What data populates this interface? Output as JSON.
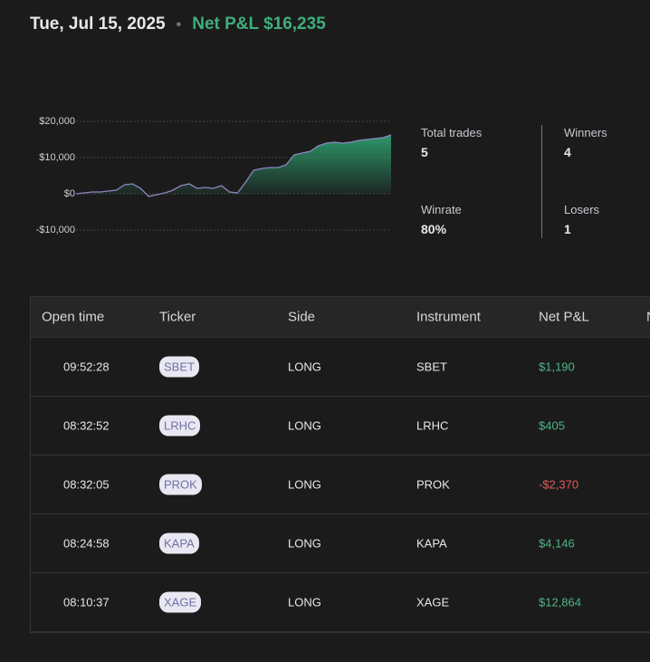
{
  "header": {
    "date": "Tue, Jul 15, 2025",
    "separator": "•",
    "net_pnl_label": "Net P&L",
    "net_pnl": "$16,235"
  },
  "chart_data": {
    "type": "area",
    "categories": [
      null,
      null,
      null,
      null,
      null,
      null,
      null,
      null,
      null,
      null,
      null,
      null,
      null,
      null,
      null,
      null,
      null,
      null,
      null,
      null,
      null,
      null,
      null,
      null,
      null,
      null,
      null,
      null,
      null,
      null,
      null,
      null,
      null,
      null,
      null,
      null,
      null,
      null,
      null,
      null
    ],
    "values": [
      0,
      250,
      500,
      500,
      750,
      1000,
      2500,
      2750,
      1500,
      -750,
      -250,
      250,
      1000,
      2250,
      2750,
      1500,
      1750,
      1500,
      2250,
      500,
      250,
      3250,
      6500,
      7000,
      7250,
      7250,
      8000,
      10750,
      11250,
      11750,
      13250,
      14000,
      14250,
      14000,
      14250,
      14750,
      15000,
      15250,
      15500,
      16250
    ],
    "color": "#8a86c2",
    "fill_color": "#2f9e6e",
    "ylim": [
      -10000,
      20000
    ],
    "yticks": [
      {
        "value": 20000,
        "label": "$20,000"
      },
      {
        "value": 10000,
        "label": "$10,000"
      },
      {
        "value": 0,
        "label": "$0"
      },
      {
        "value": -10000,
        "label": "-$10,000"
      }
    ],
    "grid": true
  },
  "stats": [
    {
      "label": "Total trades",
      "value": "5"
    },
    {
      "label": "Winners",
      "value": "4"
    },
    {
      "label": "Winrate",
      "value": "80%"
    },
    {
      "label": "Losers",
      "value": "1"
    }
  ],
  "table": {
    "columns": [
      "Open time",
      "Ticker",
      "Side",
      "Instrument",
      "Net P&L",
      "N"
    ],
    "rows": [
      [
        "09:52:28",
        "SBET",
        "LONG",
        "SBET",
        "$1,190"
      ],
      [
        "08:32:52",
        "LRHC",
        "LONG",
        "LRHC",
        "$405"
      ],
      [
        "08:32:05",
        "PROK",
        "LONG",
        "PROK",
        "-$2,370"
      ],
      [
        "08:24:58",
        "KAPA",
        "LONG",
        "KAPA",
        "$4,146"
      ],
      [
        "08:10:37",
        "XAGE",
        "LONG",
        "XAGE",
        "$12,864"
      ]
    ]
  }
}
